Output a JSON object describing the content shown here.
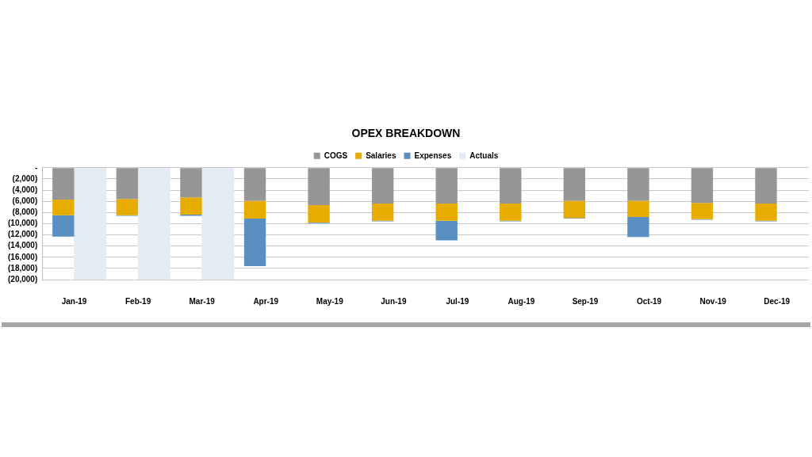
{
  "chart_data": {
    "type": "bar",
    "title": "OPEX BREAKDOWN",
    "stacked": true,
    "grid": true,
    "legend": "top",
    "categories": [
      "Jan-19",
      "Feb-19",
      "Mar-19",
      "Apr-19",
      "May-19",
      "Jun-19",
      "Jul-19",
      "Aug-19",
      "Sep-19",
      "Oct-19",
      "Nov-19",
      "Dec-19"
    ],
    "series": [
      {
        "name": "COGS",
        "color": "#969696",
        "values": [
          -5700,
          -5600,
          -5300,
          -5900,
          -6700,
          -6400,
          -6400,
          -6400,
          -5900,
          -5900,
          -6300,
          -6400
        ]
      },
      {
        "name": "Salaries",
        "color": "#e6ad00",
        "values": [
          -2800,
          -2900,
          -3100,
          -3200,
          -3100,
          -3100,
          -3100,
          -3100,
          -3100,
          -2900,
          -2900,
          -3100
        ]
      },
      {
        "name": "Expenses",
        "color": "#5a8fc2",
        "values": [
          -3800,
          -100,
          -200,
          -8500,
          -100,
          -100,
          -3500,
          -100,
          -100,
          -3600,
          -100,
          -100
        ]
      },
      {
        "name": "Actuals",
        "color": "#e4ebf5",
        "values": [
          -20000,
          -20000,
          -20000,
          null,
          null,
          null,
          null,
          null,
          null,
          null,
          null,
          null
        ]
      }
    ],
    "ylim": [
      -20000,
      0
    ],
    "yticks": [
      {
        "value": 0,
        "label": "-"
      },
      {
        "value": -2000,
        "label": "(2,000)"
      },
      {
        "value": -4000,
        "label": "(4,000)"
      },
      {
        "value": -6000,
        "label": "(6,000)"
      },
      {
        "value": -8000,
        "label": "(8,000)"
      },
      {
        "value": -10000,
        "label": "(10,000)"
      },
      {
        "value": -12000,
        "label": "(12,000)"
      },
      {
        "value": -14000,
        "label": "(14,000)"
      },
      {
        "value": -16000,
        "label": "(16,000)"
      },
      {
        "value": -18000,
        "label": "(18,000)"
      },
      {
        "value": -20000,
        "label": "(20,000)"
      }
    ]
  }
}
